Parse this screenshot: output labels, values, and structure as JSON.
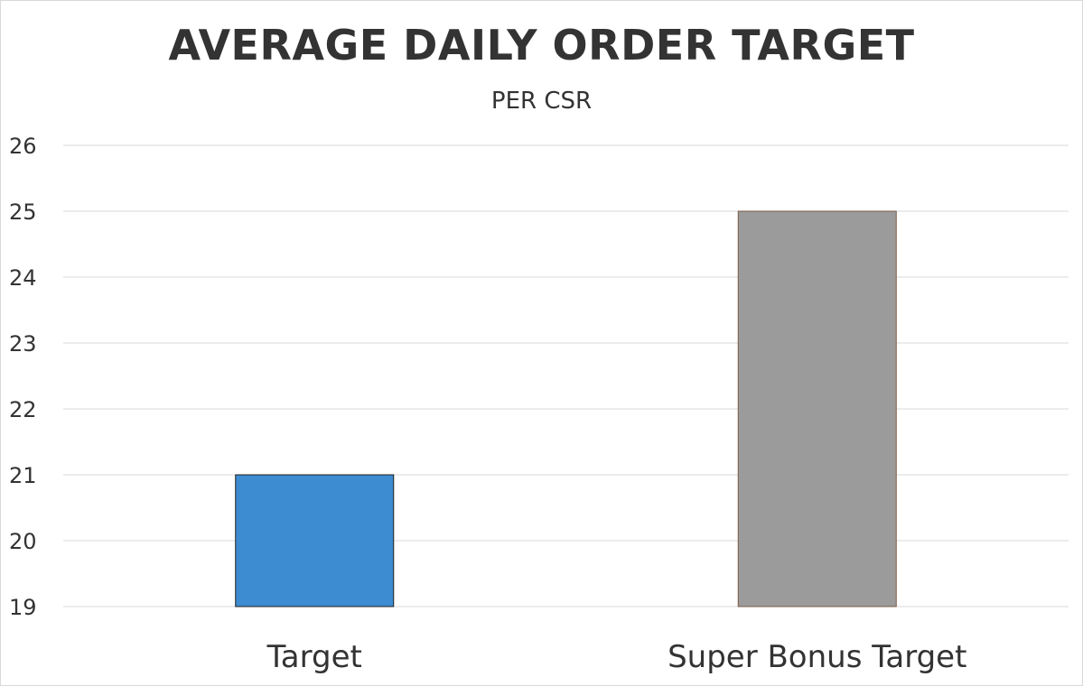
{
  "chart_data": {
    "type": "bar",
    "title": "AVERAGE DAILY ORDER TARGET",
    "subtitle": "PER CSR",
    "categories": [
      "Target",
      "Super Bonus Target"
    ],
    "values": [
      21,
      25
    ],
    "bar_colors": [
      "#3d8bd0",
      "#9b9b9b"
    ],
    "bar_outline_colors": [
      "#1f1f1f",
      "#7a5a45"
    ],
    "ylim": [
      19,
      26
    ],
    "yticks": [
      19,
      20,
      21,
      22,
      23,
      24,
      25,
      26
    ],
    "ytick_labels": [
      "19",
      "20",
      "21",
      "22",
      "23",
      "24",
      "25",
      "26"
    ],
    "grid": true,
    "legend": "none",
    "xlabel": "",
    "ylabel": ""
  }
}
